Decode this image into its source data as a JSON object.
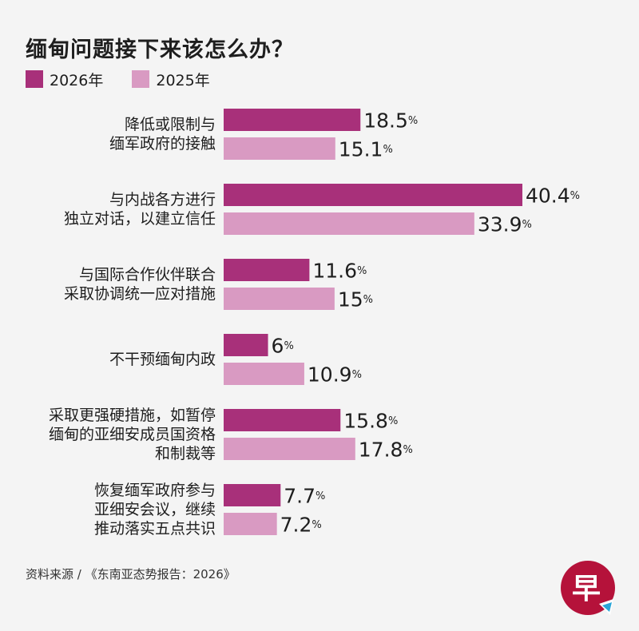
{
  "title": "缅甸问题接下来该怎么办？",
  "legend": [
    {
      "label": "2026年",
      "color": "#a8307a"
    },
    {
      "label": "2025年",
      "color": "#d99ac2"
    }
  ],
  "source": "资料来源 / 《东南亚态势报告：2026》",
  "logo_text": "早",
  "chart_data": {
    "type": "bar",
    "orientation": "horizontal",
    "categories": [
      [
        "降低或限制与",
        "缅军政府的接触"
      ],
      [
        "与内战各方进行",
        "独立对话，以建立信任"
      ],
      [
        "与国际合作伙伴联合",
        "采取协调统一应对措施"
      ],
      [
        "不干预缅甸内政"
      ],
      [
        "采取更强硬措施，如暂停",
        "缅甸的亚细安成员国资格",
        "和制裁等"
      ],
      [
        "恢复缅军政府参与",
        "亚细安会议，继续",
        "推动落实五点共识"
      ]
    ],
    "series": [
      {
        "name": "2026年",
        "color": "#a8307a",
        "values": [
          18.5,
          40.4,
          11.6,
          6,
          15.8,
          7.7
        ]
      },
      {
        "name": "2025年",
        "color": "#d99ac2",
        "values": [
          15.1,
          33.9,
          15,
          10.9,
          17.8,
          7.2
        ]
      }
    ],
    "value_suffix": "%",
    "xlim": [
      0,
      40.4
    ],
    "grid": false
  }
}
